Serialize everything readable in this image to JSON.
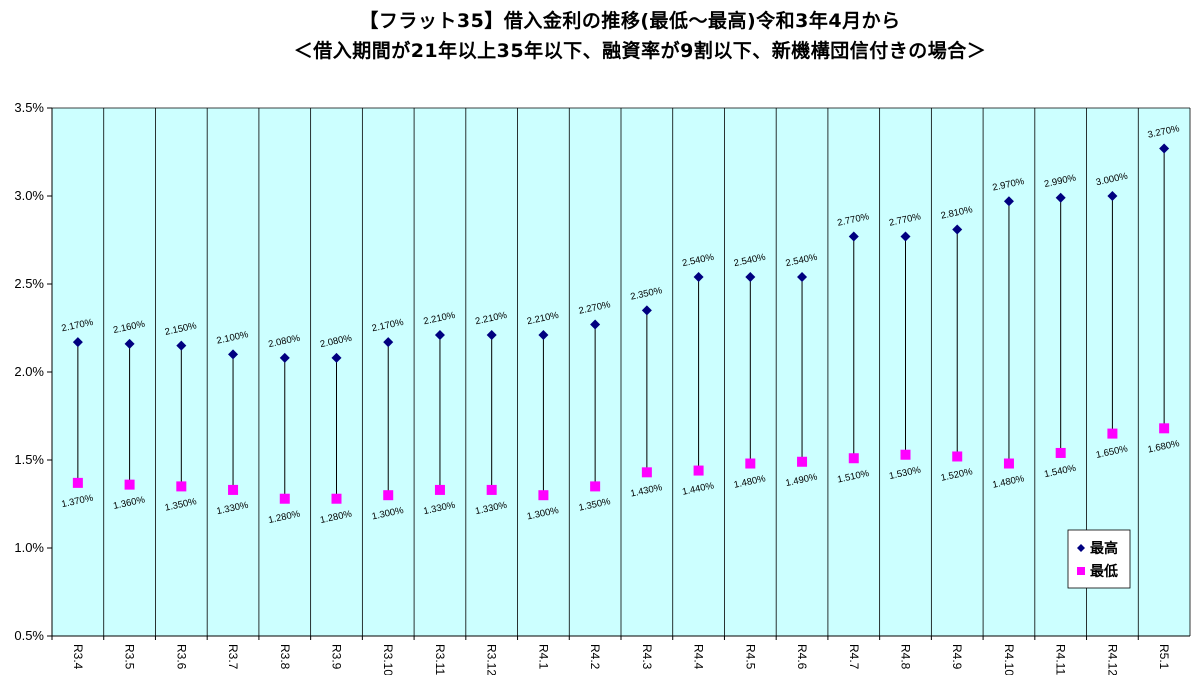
{
  "chart_data": {
    "type": "scatter",
    "title": "【フラット35】借入金利の推移(最低〜最高)令和3年4月から",
    "subtitle": "＜借入期間が21年以上35年以下、融資率が9割以下、新機構団信付きの場合＞",
    "categories": [
      "R3.4",
      "R3.5",
      "R3.6",
      "R3.7",
      "R3.8",
      "R3.9",
      "R3.10",
      "R3.11",
      "R3.12",
      "R4.1",
      "R4.2",
      "R4.3",
      "R4.4",
      "R4.5",
      "R4.6",
      "R4.7",
      "R4.8",
      "R4.9",
      "R4.10",
      "R4.11",
      "R4.12",
      "R5.1"
    ],
    "series": [
      {
        "name": "最高",
        "color": "#000080",
        "marker": "diamond",
        "values": [
          2.17,
          2.16,
          2.15,
          2.1,
          2.08,
          2.08,
          2.17,
          2.21,
          2.21,
          2.21,
          2.27,
          2.35,
          2.54,
          2.54,
          2.54,
          2.77,
          2.77,
          2.81,
          2.97,
          2.99,
          3.0,
          3.27
        ],
        "labels": [
          "2.170%",
          "2.160%",
          "2.150%",
          "2.100%",
          "2.080%",
          "2.080%",
          "2.170%",
          "2.210%",
          "2.210%",
          "2.210%",
          "2.270%",
          "2.350%",
          "2.540%",
          "2.540%",
          "2.540%",
          "2.770%",
          "2.770%",
          "2.810%",
          "2.970%",
          "2.990%",
          "3.000%",
          "3.270%"
        ]
      },
      {
        "name": "最低",
        "color": "#ff00ff",
        "marker": "square",
        "values": [
          1.37,
          1.36,
          1.35,
          1.33,
          1.28,
          1.28,
          1.3,
          1.33,
          1.33,
          1.3,
          1.35,
          1.43,
          1.44,
          1.48,
          1.49,
          1.51,
          1.53,
          1.52,
          1.48,
          1.54,
          1.65,
          1.68
        ],
        "labels": [
          "1.370%",
          "1.360%",
          "1.350%",
          "1.330%",
          "1.280%",
          "1.280%",
          "1.300%",
          "1.330%",
          "1.330%",
          "1.300%",
          "1.350%",
          "1.430%",
          "1.440%",
          "1.480%",
          "1.490%",
          "1.510%",
          "1.530%",
          "1.520%",
          "1.480%",
          "1.540%",
          "1.650%",
          "1.680%"
        ]
      }
    ],
    "ylim": [
      0.5,
      3.5
    ],
    "yticks": [
      "0.5%",
      "1.0%",
      "1.5%",
      "2.0%",
      "2.5%",
      "3.0%",
      "3.5%"
    ],
    "grid": "vertical",
    "legend_position": "bottom-right",
    "plot_background": "#ccffff"
  }
}
